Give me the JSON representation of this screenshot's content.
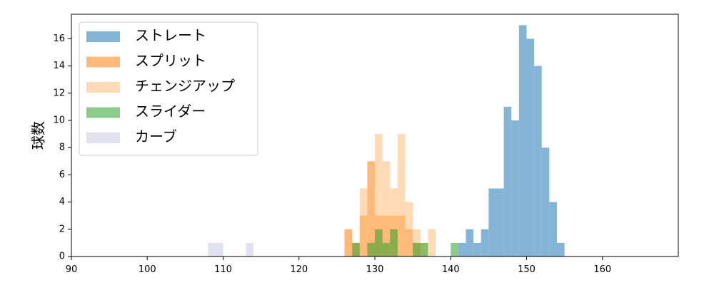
{
  "chart_data": {
    "type": "bar",
    "title": "",
    "xlabel": "",
    "ylabel": "球数",
    "xlim": [
      90,
      170
    ],
    "ylim": [
      0,
      17.8
    ],
    "xticks": [
      90,
      100,
      110,
      120,
      130,
      140,
      150,
      160
    ],
    "yticks": [
      0,
      2,
      4,
      6,
      8,
      10,
      12,
      14,
      16
    ],
    "grid": false,
    "legend_position": "top-left",
    "bin_width": 1,
    "series": [
      {
        "name": "ストレート",
        "color": "#1f77b4",
        "bins": [
          {
            "x": 141,
            "count": 1
          },
          {
            "x": 142,
            "count": 2
          },
          {
            "x": 143,
            "count": 1
          },
          {
            "x": 144,
            "count": 2
          },
          {
            "x": 145,
            "count": 5
          },
          {
            "x": 146,
            "count": 5
          },
          {
            "x": 147,
            "count": 11
          },
          {
            "x": 148,
            "count": 10
          },
          {
            "x": 149,
            "count": 17
          },
          {
            "x": 150,
            "count": 16
          },
          {
            "x": 151,
            "count": 14
          },
          {
            "x": 152,
            "count": 8
          },
          {
            "x": 153,
            "count": 4
          },
          {
            "x": 154,
            "count": 1
          }
        ]
      },
      {
        "name": "スプリット",
        "color": "#ff7f0e",
        "bins": [
          {
            "x": 126,
            "count": 2
          },
          {
            "x": 127,
            "count": 1
          },
          {
            "x": 128,
            "count": 3
          },
          {
            "x": 129,
            "count": 7
          },
          {
            "x": 130,
            "count": 3
          },
          {
            "x": 131,
            "count": 3
          },
          {
            "x": 132,
            "count": 3
          },
          {
            "x": 133,
            "count": 3
          },
          {
            "x": 134,
            "count": 2
          },
          {
            "x": 135,
            "count": 1
          }
        ]
      },
      {
        "name": "チェンジアップ",
        "color": "#ffbb78",
        "bins": [
          {
            "x": 128,
            "count": 5
          },
          {
            "x": 129,
            "count": 5
          },
          {
            "x": 130,
            "count": 9
          },
          {
            "x": 131,
            "count": 7
          },
          {
            "x": 132,
            "count": 5
          },
          {
            "x": 133,
            "count": 9
          },
          {
            "x": 134,
            "count": 4
          },
          {
            "x": 135,
            "count": 2
          },
          {
            "x": 136,
            "count": 1
          },
          {
            "x": 137,
            "count": 2
          }
        ]
      },
      {
        "name": "スライダー",
        "color": "#2ca02c",
        "bins": [
          {
            "x": 127,
            "count": 1
          },
          {
            "x": 129,
            "count": 1
          },
          {
            "x": 130,
            "count": 2
          },
          {
            "x": 131,
            "count": 1
          },
          {
            "x": 132,
            "count": 2
          },
          {
            "x": 135,
            "count": 1
          },
          {
            "x": 136,
            "count": 1
          },
          {
            "x": 140,
            "count": 1
          }
        ]
      },
      {
        "name": "カーブ",
        "color": "#c8cbe4",
        "bins": [
          {
            "x": 108,
            "count": 1
          },
          {
            "x": 109,
            "count": 1
          },
          {
            "x": 113,
            "count": 1
          }
        ]
      }
    ]
  }
}
